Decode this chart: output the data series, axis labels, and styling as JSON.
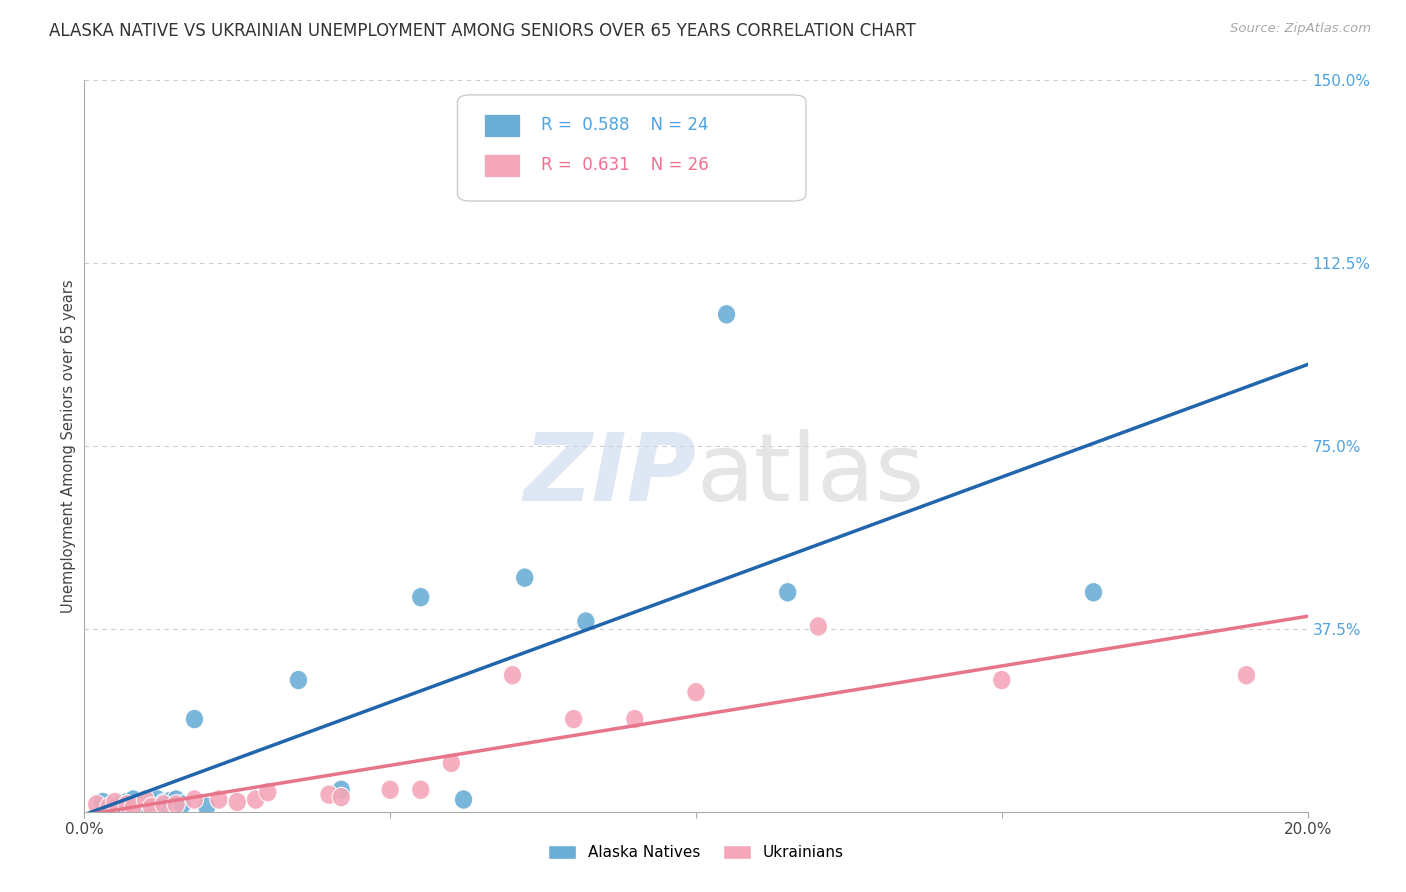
{
  "title": "ALASKA NATIVE VS UKRAINIAN UNEMPLOYMENT AMONG SENIORS OVER 65 YEARS CORRELATION CHART",
  "source": "Source: ZipAtlas.com",
  "ylabel": "Unemployment Among Seniors over 65 years",
  "xlim": [
    0.0,
    0.2
  ],
  "ylim": [
    0.0,
    1.5
  ],
  "xticks": [
    0.0,
    0.05,
    0.1,
    0.15,
    0.2
  ],
  "xticklabels": [
    "0.0%",
    "",
    "",
    "",
    "20.0%"
  ],
  "yticks": [
    0.0,
    0.375,
    0.75,
    1.125,
    1.5
  ],
  "yticklabels": [
    "",
    "37.5%",
    "75.0%",
    "112.5%",
    "150.0%"
  ],
  "alaska_R": "0.588",
  "alaska_N": "24",
  "ukraine_R": "0.631",
  "ukraine_N": "26",
  "alaska_color": "#6aaed6",
  "ukraine_color": "#f4a7b9",
  "alaska_line_color": "#2166ac",
  "ukraine_line_color": "#e8748a",
  "alaska_x": [
    0.003,
    0.005,
    0.006,
    0.007,
    0.008,
    0.009,
    0.01,
    0.011,
    0.012,
    0.013,
    0.014,
    0.015,
    0.016,
    0.018,
    0.02,
    0.035,
    0.042,
    0.055,
    0.062,
    0.072,
    0.082,
    0.105,
    0.115,
    0.165
  ],
  "alaska_y": [
    0.02,
    0.01,
    0.015,
    0.02,
    0.025,
    0.015,
    0.01,
    0.02,
    0.025,
    0.018,
    0.022,
    0.025,
    0.015,
    0.19,
    0.01,
    0.27,
    0.045,
    0.44,
    0.025,
    0.48,
    0.39,
    1.02,
    0.45,
    0.45
  ],
  "ukraine_x": [
    0.002,
    0.004,
    0.005,
    0.007,
    0.008,
    0.01,
    0.011,
    0.013,
    0.015,
    0.018,
    0.022,
    0.025,
    0.028,
    0.03,
    0.04,
    0.042,
    0.05,
    0.055,
    0.06,
    0.07,
    0.08,
    0.09,
    0.1,
    0.12,
    0.15,
    0.19
  ],
  "ukraine_y": [
    0.015,
    0.01,
    0.02,
    0.015,
    0.01,
    0.025,
    0.01,
    0.015,
    0.015,
    0.025,
    0.025,
    0.02,
    0.025,
    0.04,
    0.035,
    0.03,
    0.045,
    0.045,
    0.1,
    0.28,
    0.19,
    0.19,
    0.245,
    0.38,
    0.27,
    0.28
  ],
  "background_color": "#ffffff",
  "grid_color": "#cccccc"
}
